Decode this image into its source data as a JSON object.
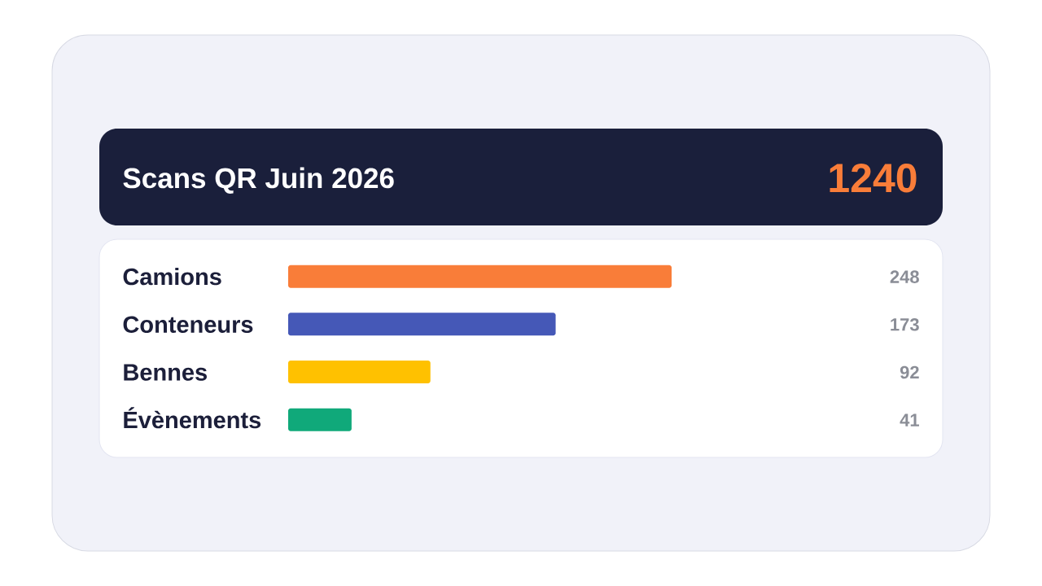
{
  "chart_data": {
    "type": "bar",
    "orientation": "horizontal",
    "tick_labels": "y",
    "data_labels": true,
    "title": "Scans QR Juin 2026",
    "annotations": [
      "1240"
    ],
    "categories": [
      "Camions",
      "Conteneurs",
      "Bennes",
      "Évènements"
    ],
    "values": [
      248,
      173,
      92,
      41
    ],
    "colors": [
      "#f97d39",
      "#4558b7",
      "#ffc100",
      "#10a97a"
    ]
  }
}
